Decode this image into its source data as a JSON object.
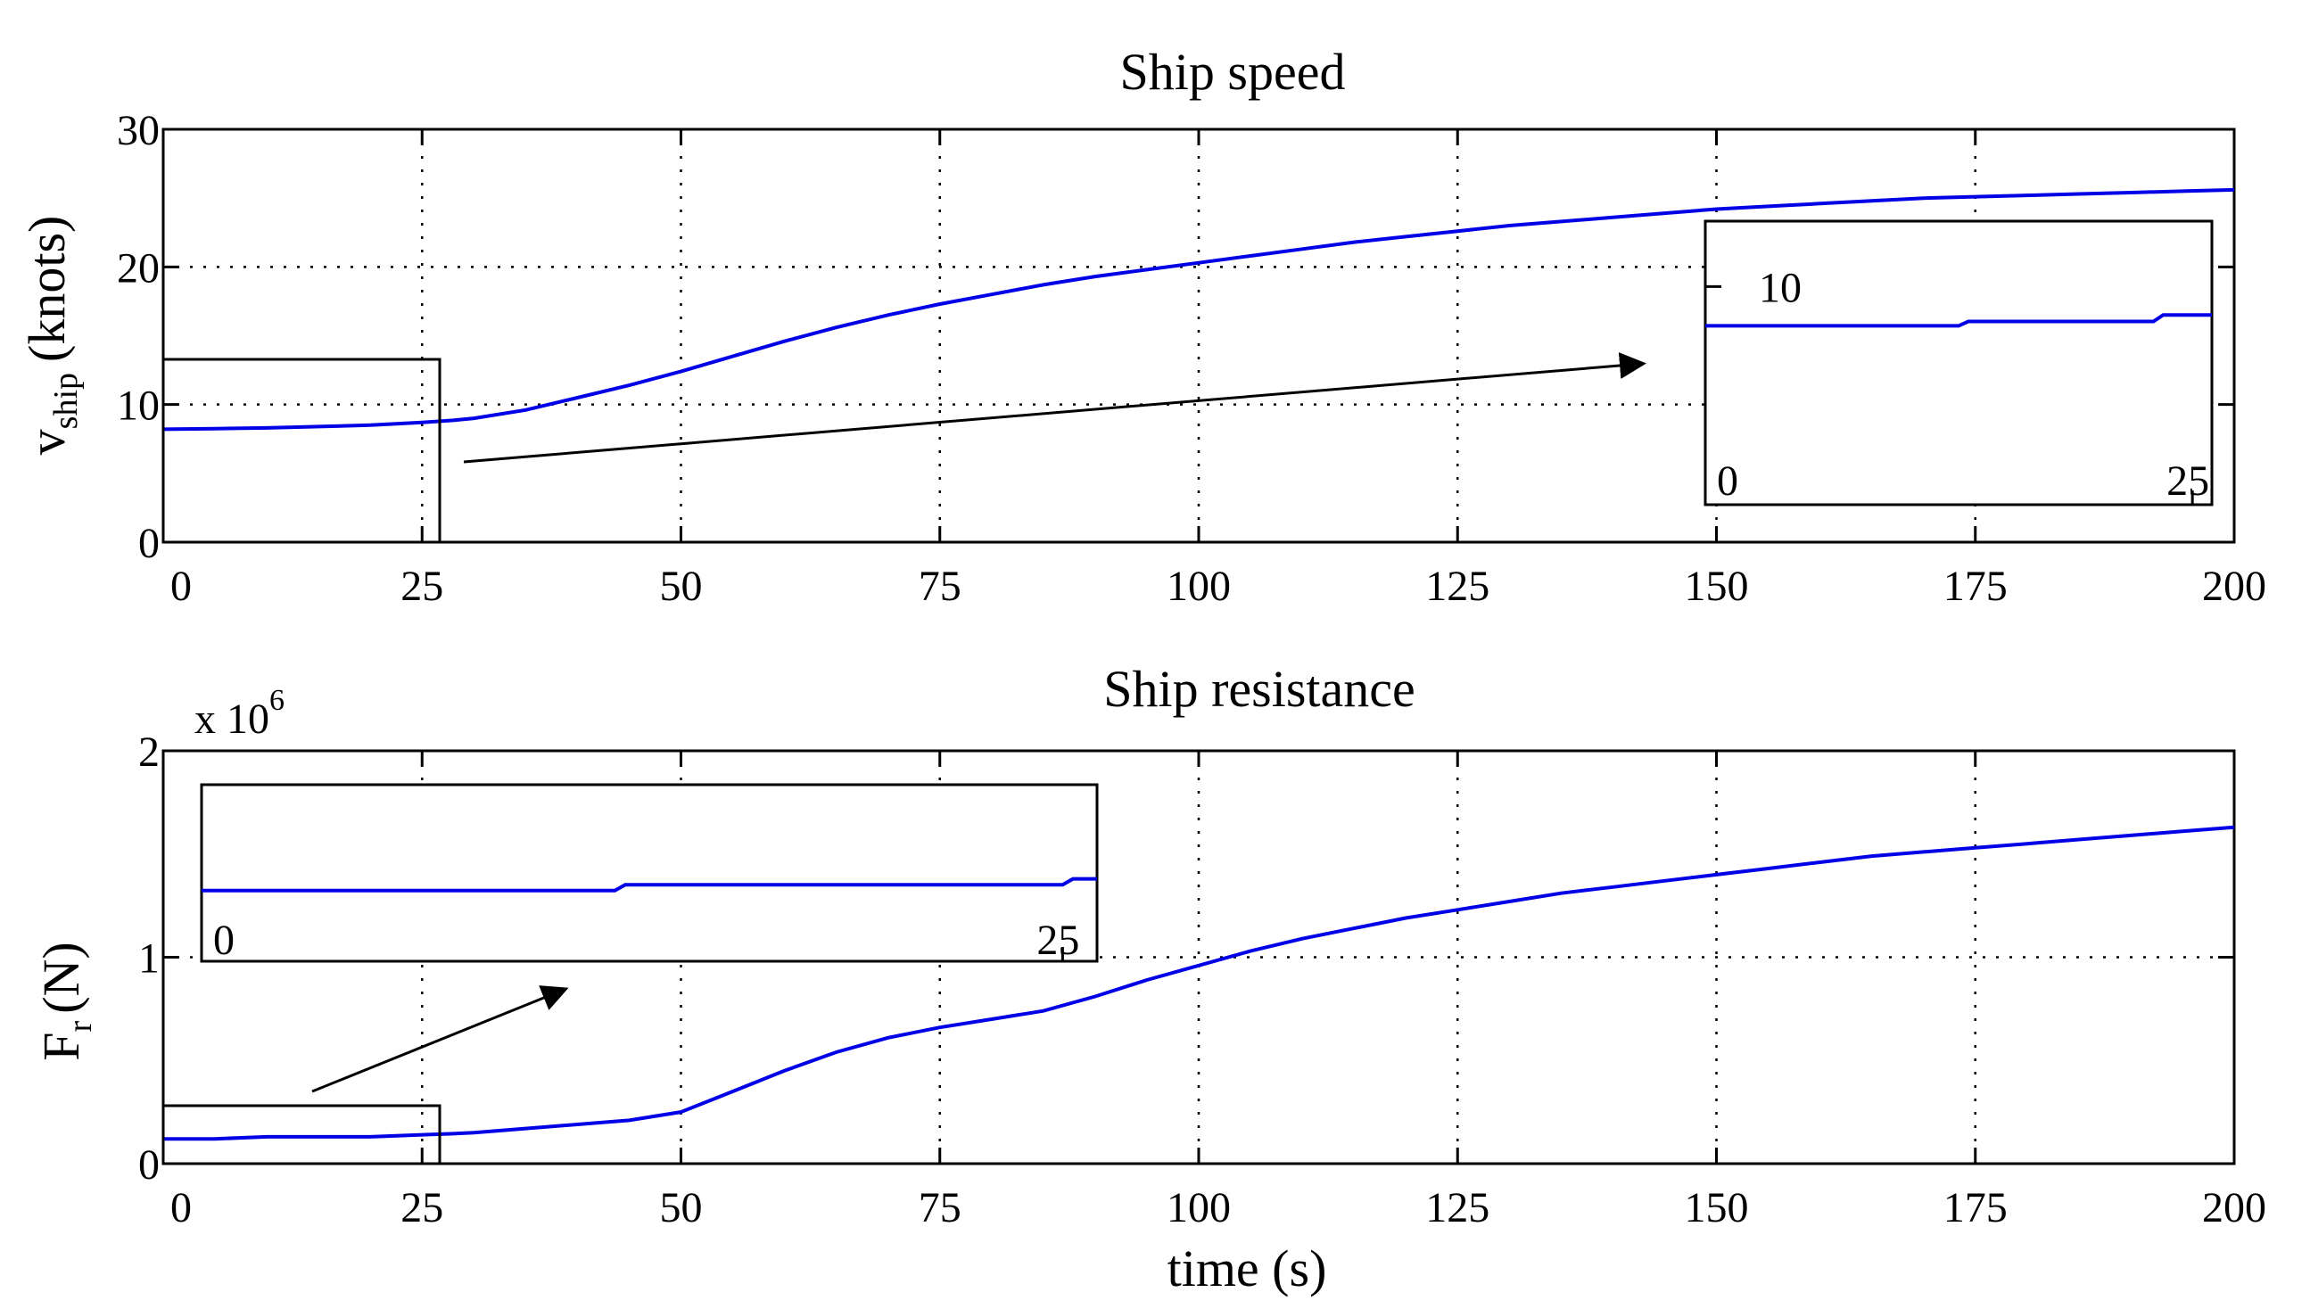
{
  "chart_data": [
    {
      "type": "line",
      "title": "Ship speed",
      "xlabel": "",
      "ylabel": "v",
      "ylabel_sub": "ship",
      "ylabel_unit": "(knots)",
      "xlim": [
        0,
        200
      ],
      "ylim": [
        0,
        30
      ],
      "xticks": [
        0,
        25,
        50,
        75,
        100,
        125,
        150,
        175,
        200
      ],
      "yticks": [
        0,
        10,
        20,
        30
      ],
      "grid": true,
      "series": [
        {
          "name": "v_ship",
          "color": "#0000e6",
          "x": [
            0,
            5,
            10,
            15,
            20,
            25,
            28,
            30,
            35,
            40,
            45,
            50,
            55,
            60,
            65,
            70,
            75,
            80,
            85,
            90,
            95,
            100,
            105,
            110,
            115,
            120,
            125,
            130,
            135,
            140,
            145,
            150,
            155,
            160,
            165,
            170,
            175,
            180,
            185,
            190,
            195,
            200
          ],
          "y": [
            8.2,
            8.25,
            8.3,
            8.4,
            8.5,
            8.7,
            8.85,
            9.0,
            9.6,
            10.5,
            11.4,
            12.4,
            13.5,
            14.6,
            15.6,
            16.5,
            17.3,
            18.0,
            18.7,
            19.3,
            19.8,
            20.3,
            20.8,
            21.3,
            21.8,
            22.2,
            22.6,
            23.0,
            23.3,
            23.6,
            23.9,
            24.2,
            24.4,
            24.6,
            24.8,
            25.0,
            25.1,
            25.2,
            25.3,
            25.4,
            25.5,
            25.6
          ]
        }
      ],
      "inset": {
        "xticks": [
          0,
          25
        ],
        "yticks": [
          10
        ],
        "xlim": [
          0,
          26
        ],
        "ylim": [
          0,
          13
        ],
        "series_x": [
          0,
          13,
          13.5,
          23,
          23.5,
          26
        ],
        "series_y": [
          8.2,
          8.2,
          8.4,
          8.4,
          8.7,
          8.7
        ]
      }
    },
    {
      "type": "line",
      "title": "Ship resistance",
      "xlabel": "time (s)",
      "ylabel": "F",
      "ylabel_sub": "r",
      "ylabel_unit": "(N)",
      "yexponent": "x 10",
      "yexponent_power": "6",
      "xlim": [
        0,
        200
      ],
      "ylim": [
        0,
        2
      ],
      "xticks": [
        0,
        25,
        50,
        75,
        100,
        125,
        150,
        175,
        200
      ],
      "yticks": [
        0,
        1,
        2
      ],
      "grid": true,
      "series": [
        {
          "name": "F_r (x1e6)",
          "color": "#0000e6",
          "x": [
            0,
            5,
            10,
            15,
            20,
            25,
            28,
            30,
            35,
            40,
            45,
            50,
            55,
            60,
            65,
            70,
            75,
            80,
            85,
            90,
            95,
            100,
            105,
            110,
            115,
            120,
            125,
            130,
            135,
            140,
            145,
            150,
            155,
            160,
            165,
            170,
            175,
            180,
            185,
            190,
            195,
            200
          ],
          "y": [
            0.12,
            0.12,
            0.13,
            0.13,
            0.13,
            0.14,
            0.145,
            0.15,
            0.17,
            0.19,
            0.21,
            0.25,
            0.35,
            0.45,
            0.54,
            0.61,
            0.66,
            0.7,
            0.74,
            0.81,
            0.89,
            0.96,
            1.03,
            1.09,
            1.14,
            1.19,
            1.23,
            1.27,
            1.31,
            1.34,
            1.37,
            1.4,
            1.43,
            1.46,
            1.49,
            1.51,
            1.53,
            1.55,
            1.57,
            1.59,
            1.61,
            1.63
          ]
        }
      ],
      "inset": {
        "xticks": [
          0,
          25
        ],
        "yticks": [],
        "xlim": [
          0,
          26
        ],
        "ylim": [
          0,
          0.3
        ],
        "series_x": [
          0,
          12,
          12.3,
          25,
          25.3,
          26
        ],
        "series_y": [
          0.12,
          0.12,
          0.13,
          0.13,
          0.14,
          0.14
        ]
      }
    }
  ]
}
